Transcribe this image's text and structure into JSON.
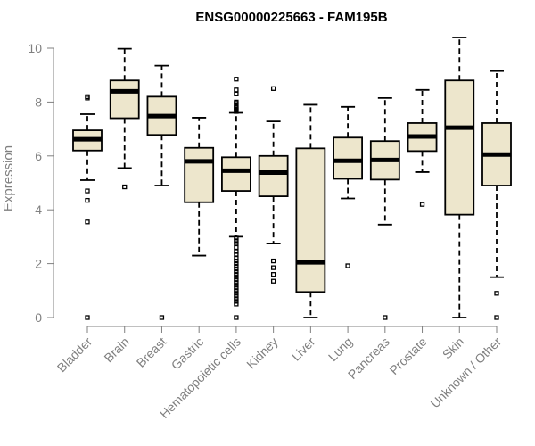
{
  "chart_data": {
    "type": "boxplot",
    "title": "ENSG00000225663 - FAM195B",
    "xlabel": "",
    "ylabel": "Expression",
    "ylim": [
      0,
      10.4
    ],
    "yticks": [
      0,
      2,
      4,
      6,
      8,
      10
    ],
    "colors": {
      "box_fill": "#ede6cc",
      "box_stroke": "#000000",
      "axis": "#808080"
    },
    "categories": [
      "Bladder",
      "Brain",
      "Breast",
      "Gastric",
      "Hematopoietic cells",
      "Kidney",
      "Liver",
      "Lung",
      "Pancreas",
      "Prostate",
      "Skin",
      "Unknown / Other"
    ],
    "boxes": [
      {
        "name": "Bladder",
        "whisker_low": 5.1,
        "q1": 6.2,
        "median": 6.62,
        "q3": 6.95,
        "whisker_high": 7.55,
        "outliers": [
          8.2,
          8.15,
          4.7,
          4.35,
          3.55,
          0.0
        ]
      },
      {
        "name": "Brain",
        "whisker_low": 5.55,
        "q1": 7.4,
        "median": 8.4,
        "q3": 8.8,
        "whisker_high": 9.98,
        "outliers": [
          4.85
        ]
      },
      {
        "name": "Breast",
        "whisker_low": 4.9,
        "q1": 6.78,
        "median": 7.48,
        "q3": 8.2,
        "whisker_high": 9.35,
        "outliers": [
          0.0
        ]
      },
      {
        "name": "Gastric",
        "whisker_low": 2.3,
        "q1": 4.28,
        "median": 5.8,
        "q3": 6.3,
        "whisker_high": 7.42,
        "outliers": []
      },
      {
        "name": "Hematopoietic cells",
        "whisker_low": 3.0,
        "q1": 4.7,
        "median": 5.45,
        "q3": 5.95,
        "whisker_high": 7.6,
        "outliers": [
          8.85,
          8.45,
          8.3,
          8.0,
          7.95,
          7.85,
          7.8,
          7.75,
          7.7,
          7.65,
          2.95,
          2.85,
          2.75,
          2.6,
          2.45,
          2.35,
          2.2,
          2.1,
          2.0,
          1.9,
          1.8,
          1.7,
          1.6,
          1.5,
          1.4,
          1.3,
          1.2,
          1.1,
          1.0,
          0.9,
          0.8,
          0.7,
          0.6,
          0.5,
          0.0
        ]
      },
      {
        "name": "Kidney",
        "whisker_low": 2.75,
        "q1": 4.5,
        "median": 5.38,
        "q3": 6.0,
        "whisker_high": 7.28,
        "outliers": [
          8.5,
          2.1,
          1.85,
          1.6,
          1.35
        ]
      },
      {
        "name": "Liver",
        "whisker_low": 0.0,
        "q1": 0.95,
        "median": 2.05,
        "q3": 6.28,
        "whisker_high": 7.9,
        "outliers": []
      },
      {
        "name": "Lung",
        "whisker_low": 4.42,
        "q1": 5.15,
        "median": 5.82,
        "q3": 6.68,
        "whisker_high": 7.82,
        "outliers": [
          1.92
        ]
      },
      {
        "name": "Pancreas",
        "whisker_low": 3.45,
        "q1": 5.12,
        "median": 5.85,
        "q3": 6.55,
        "whisker_high": 8.15,
        "outliers": [
          0.0
        ]
      },
      {
        "name": "Prostate",
        "whisker_low": 5.4,
        "q1": 6.18,
        "median": 6.72,
        "q3": 7.22,
        "whisker_high": 8.45,
        "outliers": [
          4.2
        ]
      },
      {
        "name": "Skin",
        "whisker_low": 0.0,
        "q1": 3.82,
        "median": 7.05,
        "q3": 8.8,
        "whisker_high": 10.4,
        "outliers": []
      },
      {
        "name": "Unknown / Other",
        "whisker_low": 1.5,
        "q1": 4.9,
        "median": 6.05,
        "q3": 7.22,
        "whisker_high": 9.15,
        "outliers": [
          0.9,
          0.0
        ]
      }
    ]
  }
}
